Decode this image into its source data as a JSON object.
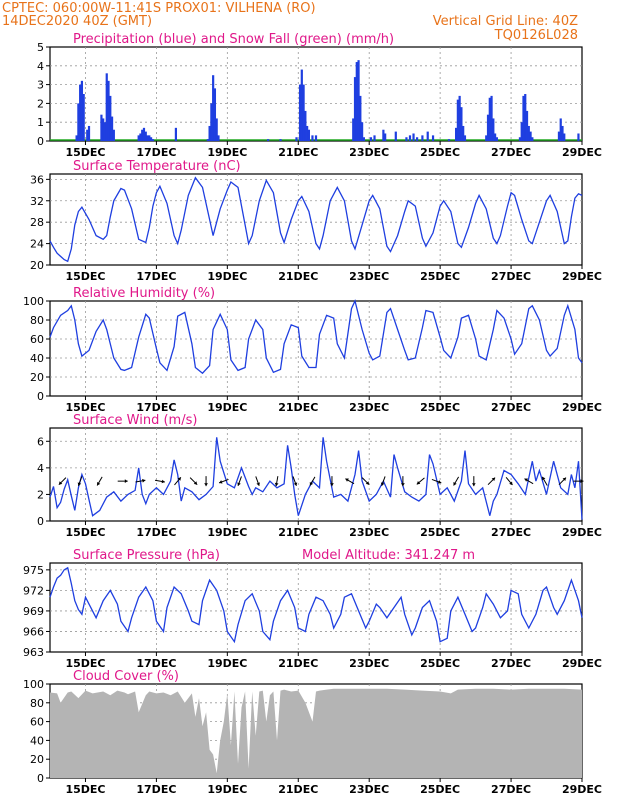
{
  "header": {
    "left_line1": "CPTEC:   060:00W-11:41S   PROX01: VILHENA (RO)",
    "left_line2": "14DEC2020 40Z (GMT)",
    "right_line2": "Vertical Grid Line: 40Z",
    "right_line3": "TQ0126L028"
  },
  "x_axis": {
    "day_labels": [
      "15DEC",
      "17DEC",
      "19DEC",
      "21DEC",
      "23DEC",
      "25DEC",
      "27DEC",
      "29DEC"
    ],
    "day_values": [
      15,
      17,
      19,
      21,
      23,
      25,
      27,
      29
    ],
    "xlim": [
      14,
      29
    ]
  },
  "colors": {
    "series": "#1f3fe0",
    "snow": "#22aa22",
    "cloud": "#b4b4b4",
    "title": "#e0188a",
    "header": "#e8731a"
  },
  "chart_data": [
    {
      "id": "precip",
      "type": "bar",
      "title": "Precipitation (blue) and Snow Fall (green) (mm/h)",
      "ylim": [
        0,
        5
      ],
      "yticks": [
        0,
        1,
        2,
        3,
        4,
        5
      ],
      "x": [
        14.75,
        14.8,
        14.85,
        14.9,
        14.95,
        15.05,
        15.1,
        15.45,
        15.5,
        15.55,
        15.6,
        15.65,
        15.7,
        15.75,
        15.8,
        16.5,
        16.55,
        16.6,
        16.65,
        16.7,
        16.75,
        16.8,
        16.85,
        16.9,
        17.55,
        18.45,
        18.5,
        18.55,
        18.6,
        18.65,
        18.7,
        18.75,
        20.15,
        20.5,
        20.95,
        21.05,
        21.1,
        21.15,
        21.2,
        21.25,
        21.3,
        21.4,
        21.5,
        22.55,
        22.6,
        22.65,
        22.7,
        22.75,
        22.8,
        22.85,
        23.05,
        23.15,
        23.4,
        23.45,
        23.75,
        24.05,
        24.15,
        24.25,
        24.35,
        24.5,
        24.65,
        24.8,
        25.25,
        25.45,
        25.5,
        25.55,
        25.6,
        25.65,
        25.7,
        26.3,
        26.35,
        26.4,
        26.45,
        26.5,
        26.55,
        26.6,
        27.25,
        27.3,
        27.35,
        27.4,
        27.45,
        27.5,
        27.55,
        27.6,
        28.35,
        28.4,
        28.45,
        28.5,
        28.9
      ],
      "values": [
        0.3,
        2.0,
        3.0,
        3.2,
        2.5,
        0.6,
        0.8,
        1.4,
        1.2,
        1.0,
        3.6,
        3.2,
        2.4,
        1.3,
        0.6,
        0.3,
        0.4,
        0.6,
        0.7,
        0.5,
        0.3,
        0.3,
        0.2,
        0.1,
        0.7,
        0.1,
        0.8,
        2.0,
        3.5,
        2.8,
        1.2,
        0.3,
        0.1,
        0.1,
        0.2,
        3.0,
        3.8,
        3.0,
        1.6,
        0.8,
        0.6,
        0.3,
        0.3,
        1.2,
        3.4,
        4.2,
        4.3,
        2.4,
        1.0,
        0.2,
        0.2,
        0.3,
        0.6,
        0.4,
        0.5,
        0.2,
        0.3,
        0.4,
        0.2,
        0.3,
        0.5,
        0.3,
        0.1,
        0.7,
        2.2,
        2.4,
        1.8,
        0.8,
        0.3,
        0.3,
        1.4,
        2.3,
        2.4,
        1.2,
        0.4,
        0.2,
        0.2,
        1.0,
        2.4,
        2.5,
        1.6,
        0.8,
        0.5,
        0.2,
        0.5,
        1.2,
        0.8,
        0.4,
        0.4
      ]
    },
    {
      "id": "temp",
      "type": "line",
      "title": "Surface Temperature (nC)",
      "ylim": [
        20,
        37
      ],
      "yticks": [
        20,
        24,
        28,
        32,
        36
      ],
      "x": [
        14.0,
        14.1,
        14.2,
        14.3,
        14.4,
        14.5,
        14.6,
        14.7,
        14.8,
        14.9,
        15.1,
        15.3,
        15.5,
        15.6,
        15.7,
        15.8,
        16.0,
        16.1,
        16.3,
        16.5,
        16.7,
        16.8,
        16.9,
        17.0,
        17.1,
        17.3,
        17.5,
        17.6,
        17.7,
        17.9,
        18.1,
        18.3,
        18.5,
        18.6,
        18.8,
        19.0,
        19.1,
        19.3,
        19.5,
        19.6,
        19.7,
        19.9,
        20.1,
        20.3,
        20.5,
        20.6,
        20.8,
        21.0,
        21.1,
        21.3,
        21.5,
        21.6,
        21.7,
        21.9,
        22.1,
        22.3,
        22.5,
        22.6,
        22.8,
        23.0,
        23.1,
        23.3,
        23.5,
        23.6,
        23.8,
        24.0,
        24.1,
        24.3,
        24.5,
        24.6,
        24.8,
        25.0,
        25.1,
        25.3,
        25.5,
        25.6,
        25.8,
        26.0,
        26.1,
        26.3,
        26.5,
        26.6,
        26.7,
        26.9,
        27.0,
        27.1,
        27.3,
        27.5,
        27.6,
        27.8,
        28.0,
        28.1,
        28.3,
        28.5,
        28.6,
        28.7,
        28.8,
        28.9,
        29.0
      ],
      "values": [
        24.5,
        23.3,
        22.2,
        21.6,
        21.0,
        20.7,
        23.0,
        27.5,
        30.0,
        30.8,
        28.5,
        25.5,
        24.8,
        25.5,
        29.0,
        32.0,
        34.3,
        34.0,
        30.5,
        24.8,
        24.2,
        27.0,
        31.0,
        33.5,
        34.7,
        31.5,
        25.5,
        24.0,
        26.5,
        33.0,
        36.3,
        34.5,
        28.5,
        25.5,
        30.5,
        34.0,
        35.5,
        34.5,
        27.5,
        24.0,
        25.5,
        32.0,
        35.8,
        33.5,
        26.0,
        24.2,
        28.5,
        32.0,
        32.8,
        30.0,
        24.0,
        23.0,
        25.5,
        32.0,
        34.5,
        32.0,
        24.5,
        23.0,
        27.5,
        32.0,
        33.0,
        30.5,
        23.5,
        22.5,
        25.5,
        30.0,
        32.0,
        31.0,
        25.0,
        23.5,
        26.0,
        31.0,
        32.0,
        30.0,
        24.0,
        23.3,
        27.0,
        31.5,
        33.0,
        30.5,
        25.0,
        24.0,
        25.5,
        31.0,
        33.5,
        33.0,
        28.5,
        24.5,
        24.0,
        28.0,
        32.0,
        33.0,
        30.0,
        24.0,
        24.5,
        29.0,
        32.5,
        33.3,
        33.0
      ]
    },
    {
      "id": "rh",
      "type": "line",
      "title": "Relative Humidity (%)",
      "ylim": [
        0,
        100
      ],
      "yticks": [
        0,
        20,
        40,
        60,
        80,
        100
      ],
      "x": [
        14.0,
        14.1,
        14.3,
        14.5,
        14.6,
        14.7,
        14.8,
        14.9,
        15.1,
        15.3,
        15.5,
        15.6,
        15.8,
        16.0,
        16.1,
        16.3,
        16.5,
        16.7,
        16.8,
        17.0,
        17.1,
        17.3,
        17.5,
        17.6,
        17.8,
        18.0,
        18.1,
        18.3,
        18.5,
        18.6,
        18.8,
        19.0,
        19.1,
        19.3,
        19.5,
        19.6,
        19.8,
        20.0,
        20.1,
        20.3,
        20.5,
        20.6,
        20.8,
        21.0,
        21.1,
        21.3,
        21.5,
        21.6,
        21.8,
        22.0,
        22.1,
        22.3,
        22.5,
        22.6,
        22.8,
        23.0,
        23.1,
        23.3,
        23.5,
        23.6,
        23.8,
        24.0,
        24.1,
        24.3,
        24.5,
        24.6,
        24.8,
        25.0,
        25.1,
        25.3,
        25.5,
        25.6,
        25.8,
        26.0,
        26.1,
        26.3,
        26.5,
        26.6,
        26.8,
        27.0,
        27.1,
        27.3,
        27.5,
        27.6,
        27.8,
        28.0,
        28.1,
        28.3,
        28.5,
        28.6,
        28.8,
        28.9,
        29.0
      ],
      "values": [
        62,
        72,
        85,
        90,
        95,
        80,
        55,
        42,
        48,
        68,
        80,
        70,
        40,
        28,
        27,
        30,
        62,
        86,
        82,
        50,
        35,
        27,
        52,
        84,
        88,
        55,
        30,
        24,
        32,
        70,
        86,
        70,
        38,
        27,
        30,
        60,
        80,
        70,
        40,
        25,
        28,
        55,
        75,
        72,
        42,
        30,
        30,
        65,
        85,
        82,
        55,
        40,
        92,
        100,
        70,
        45,
        38,
        42,
        88,
        92,
        70,
        48,
        38,
        40,
        72,
        90,
        88,
        62,
        48,
        40,
        62,
        82,
        85,
        60,
        42,
        38,
        70,
        90,
        82,
        60,
        44,
        55,
        92,
        95,
        80,
        48,
        42,
        50,
        85,
        95,
        70,
        40,
        35
      ]
    },
    {
      "id": "wind",
      "type": "line",
      "title": "Surface Wind (m/s)",
      "ylim": [
        0,
        7
      ],
      "yticks": [
        0,
        2,
        4,
        6
      ],
      "x": [
        14.0,
        14.1,
        14.2,
        14.3,
        14.4,
        14.5,
        14.6,
        14.7,
        14.8,
        14.9,
        15.0,
        15.1,
        15.2,
        15.4,
        15.6,
        15.8,
        16.0,
        16.2,
        16.4,
        16.5,
        16.6,
        16.7,
        16.8,
        17.0,
        17.2,
        17.4,
        17.5,
        17.6,
        17.7,
        17.8,
        18.0,
        18.2,
        18.4,
        18.6,
        18.7,
        18.8,
        19.0,
        19.2,
        19.4,
        19.6,
        19.7,
        19.8,
        20.0,
        20.2,
        20.4,
        20.6,
        20.7,
        20.8,
        20.9,
        21.0,
        21.2,
        21.4,
        21.6,
        21.7,
        21.8,
        22.0,
        22.2,
        22.4,
        22.6,
        22.7,
        22.8,
        23.0,
        23.2,
        23.4,
        23.6,
        23.7,
        23.8,
        24.0,
        24.2,
        24.4,
        24.6,
        24.7,
        24.8,
        25.0,
        25.2,
        25.4,
        25.6,
        25.7,
        25.8,
        26.0,
        26.2,
        26.4,
        26.5,
        26.6,
        26.8,
        27.0,
        27.2,
        27.4,
        27.6,
        27.7,
        27.8,
        28.0,
        28.2,
        28.4,
        28.6,
        28.7,
        28.8,
        28.9,
        29.0
      ],
      "values": [
        1.8,
        2.6,
        1.0,
        1.4,
        2.4,
        3.1,
        1.9,
        0.8,
        2.5,
        3.5,
        2.8,
        1.6,
        0.4,
        0.8,
        1.8,
        2.2,
        1.5,
        2.0,
        2.3,
        4.0,
        2.0,
        1.3,
        2.0,
        2.5,
        2.0,
        3.0,
        4.6,
        3.5,
        1.5,
        2.5,
        2.2,
        1.6,
        2.0,
        2.6,
        6.3,
        4.5,
        2.8,
        2.5,
        4.0,
        2.6,
        2.0,
        2.5,
        2.2,
        3.0,
        2.5,
        2.8,
        5.7,
        4.0,
        2.0,
        0.4,
        2.0,
        3.0,
        2.5,
        6.3,
        4.5,
        1.8,
        2.0,
        1.5,
        3.5,
        5.3,
        3.0,
        1.5,
        2.0,
        3.0,
        1.8,
        5.0,
        4.0,
        2.2,
        1.8,
        1.5,
        2.0,
        5.0,
        4.3,
        2.0,
        2.5,
        1.5,
        3.0,
        5.3,
        2.8,
        2.0,
        2.5,
        0.4,
        1.5,
        2.0,
        3.8,
        3.5,
        2.8,
        2.0,
        4.5,
        3.0,
        3.8,
        2.0,
        4.5,
        2.5,
        2.0,
        3.5,
        2.5,
        4.5,
        0.1
      ],
      "arrows": {
        "x": [
          14.35,
          14.85,
          15.4,
          16.05,
          16.55,
          17.1,
          17.6,
          18.05,
          18.4,
          18.9,
          19.35,
          19.85,
          20.4,
          20.9,
          21.4,
          21.95,
          22.45,
          22.9,
          23.4,
          23.95,
          24.45,
          24.9,
          25.45,
          25.95,
          26.45,
          26.95,
          27.5,
          27.95,
          28.45,
          28.9
        ],
        "dir_deg": [
          225,
          200,
          210,
          90,
          80,
          100,
          40,
          135,
          180,
          250,
          200,
          160,
          190,
          160,
          210,
          180,
          300,
          135,
          200,
          180,
          230,
          110,
          210,
          180,
          45,
          140,
          300,
          330,
          45,
          90
        ]
      }
    },
    {
      "id": "pres",
      "type": "line",
      "title": "Surface Pressure (hPa)",
      "annotation": "Model Altitude: 341.247 m",
      "ylim": [
        963,
        976
      ],
      "yticks": [
        963,
        966,
        969,
        972,
        975
      ],
      "x": [
        14.0,
        14.1,
        14.2,
        14.3,
        14.4,
        14.5,
        14.6,
        14.7,
        14.8,
        14.9,
        15.0,
        15.1,
        15.3,
        15.5,
        15.7,
        15.9,
        16.0,
        16.2,
        16.3,
        16.5,
        16.7,
        16.9,
        17.0,
        17.2,
        17.3,
        17.5,
        17.7,
        17.9,
        18.0,
        18.2,
        18.3,
        18.5,
        18.7,
        18.9,
        19.0,
        19.2,
        19.3,
        19.5,
        19.7,
        19.9,
        20.0,
        20.2,
        20.3,
        20.5,
        20.7,
        20.9,
        21.0,
        21.2,
        21.3,
        21.5,
        21.7,
        21.9,
        22.0,
        22.2,
        22.3,
        22.5,
        22.7,
        22.9,
        23.0,
        23.2,
        23.3,
        23.5,
        23.7,
        23.9,
        24.0,
        24.2,
        24.3,
        24.5,
        24.7,
        24.9,
        25.0,
        25.2,
        25.3,
        25.5,
        25.7,
        25.9,
        26.0,
        26.2,
        26.3,
        26.5,
        26.7,
        26.9,
        27.0,
        27.2,
        27.3,
        27.5,
        27.7,
        27.9,
        28.0,
        28.2,
        28.3,
        28.5,
        28.7,
        28.9,
        29.0
      ],
      "values": [
        971.0,
        972.5,
        973.8,
        974.2,
        975.0,
        975.3,
        973.0,
        970.5,
        969.2,
        968.5,
        971.0,
        970.0,
        968.0,
        970.5,
        972.0,
        970.0,
        967.5,
        966.0,
        968.0,
        971.0,
        972.5,
        970.5,
        967.5,
        966.0,
        969.5,
        972.5,
        971.5,
        969.0,
        967.5,
        967.0,
        970.5,
        973.5,
        972.0,
        969.0,
        966.0,
        964.5,
        967.0,
        970.5,
        971.5,
        969.0,
        966.0,
        964.8,
        967.5,
        970.5,
        972.0,
        969.5,
        966.5,
        966.0,
        968.5,
        971.0,
        970.5,
        968.5,
        966.5,
        968.5,
        971.0,
        971.5,
        969.0,
        966.5,
        967.5,
        970.0,
        969.5,
        968.0,
        969.5,
        971.0,
        968.5,
        965.5,
        966.5,
        969.5,
        970.5,
        967.5,
        964.5,
        965.0,
        969.0,
        971.0,
        968.5,
        966.0,
        966.5,
        969.5,
        971.5,
        970.0,
        968.0,
        969.0,
        972.0,
        971.5,
        968.5,
        966.5,
        968.5,
        972.0,
        972.5,
        969.5,
        968.5,
        970.5,
        973.5,
        970.5,
        968.0
      ]
    },
    {
      "id": "cloud",
      "type": "area",
      "title": "Cloud Cover (%)",
      "ylim": [
        0,
        100
      ],
      "yticks": [
        0,
        20,
        40,
        60,
        80,
        100
      ],
      "x": [
        14.0,
        14.2,
        14.3,
        14.5,
        14.6,
        14.8,
        15.0,
        15.2,
        15.5,
        15.7,
        15.9,
        16.1,
        16.2,
        16.4,
        16.5,
        16.7,
        16.8,
        17.0,
        17.2,
        17.4,
        17.6,
        17.8,
        18.0,
        18.1,
        18.2,
        18.3,
        18.4,
        18.5,
        18.6,
        18.7,
        18.8,
        18.9,
        19.0,
        19.1,
        19.2,
        19.3,
        19.4,
        19.5,
        19.6,
        19.7,
        19.8,
        19.9,
        20.0,
        20.1,
        20.2,
        20.3,
        20.4,
        20.5,
        20.6,
        20.8,
        21.0,
        21.2,
        21.4,
        21.5,
        21.6,
        21.8,
        22.0,
        22.5,
        23.0,
        23.5,
        24.0,
        24.5,
        25.0,
        25.3,
        25.5,
        26.0,
        26.5,
        27.0,
        27.5,
        28.0,
        28.5,
        29.0
      ],
      "values": [
        91,
        90,
        80,
        91,
        92,
        85,
        93,
        90,
        92,
        88,
        93,
        91,
        89,
        92,
        70,
        88,
        92,
        90,
        91,
        88,
        92,
        80,
        90,
        65,
        85,
        55,
        70,
        30,
        25,
        5,
        40,
        60,
        90,
        35,
        92,
        15,
        75,
        92,
        10,
        92,
        45,
        92,
        93,
        60,
        88,
        92,
        40,
        93,
        94,
        92,
        93,
        80,
        60,
        92,
        93,
        94,
        95,
        95,
        95,
        95,
        94,
        93,
        92,
        90,
        94,
        95,
        95,
        94,
        95,
        95,
        95,
        94
      ]
    }
  ]
}
